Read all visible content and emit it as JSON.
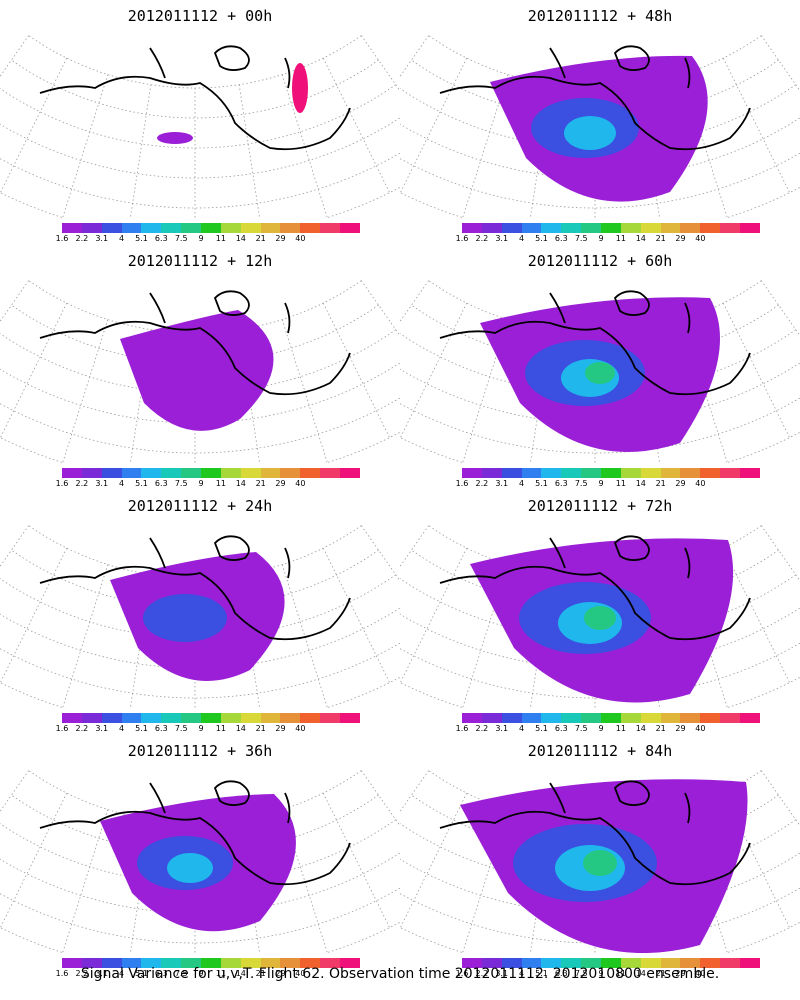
{
  "panels": [
    {
      "title": "2012011112 + 00h",
      "level": 0
    },
    {
      "title": "2012011112 + 48h",
      "level": 4
    },
    {
      "title": "2012011112 + 12h",
      "level": 1
    },
    {
      "title": "2012011112 + 60h",
      "level": 5
    },
    {
      "title": "2012011112 + 24h",
      "level": 2
    },
    {
      "title": "2012011112 + 72h",
      "level": 6
    },
    {
      "title": "2012011112 + 36h",
      "level": 3
    },
    {
      "title": "2012011112 + 84h",
      "level": 7
    }
  ],
  "colorbar": {
    "colors": [
      "#9a1fd6",
      "#7a2ad6",
      "#3b4fe0",
      "#2f7ff0",
      "#20b8ec",
      "#18c8b8",
      "#24c882",
      "#1ec81e",
      "#a6d83a",
      "#d8d838",
      "#e0b63a",
      "#e6913a",
      "#f0612e",
      "#f03a68",
      "#f0107a"
    ],
    "labels": [
      "1.6",
      "2.2",
      "3.1",
      "4",
      "5.1",
      "6.3",
      "7.5",
      "9",
      "11",
      "14",
      "21",
      "29",
      "40"
    ]
  },
  "footer": "Signal Variance for u,v,T. Flight 62. Observation time 2012011112. 2012010800 ensemble."
}
